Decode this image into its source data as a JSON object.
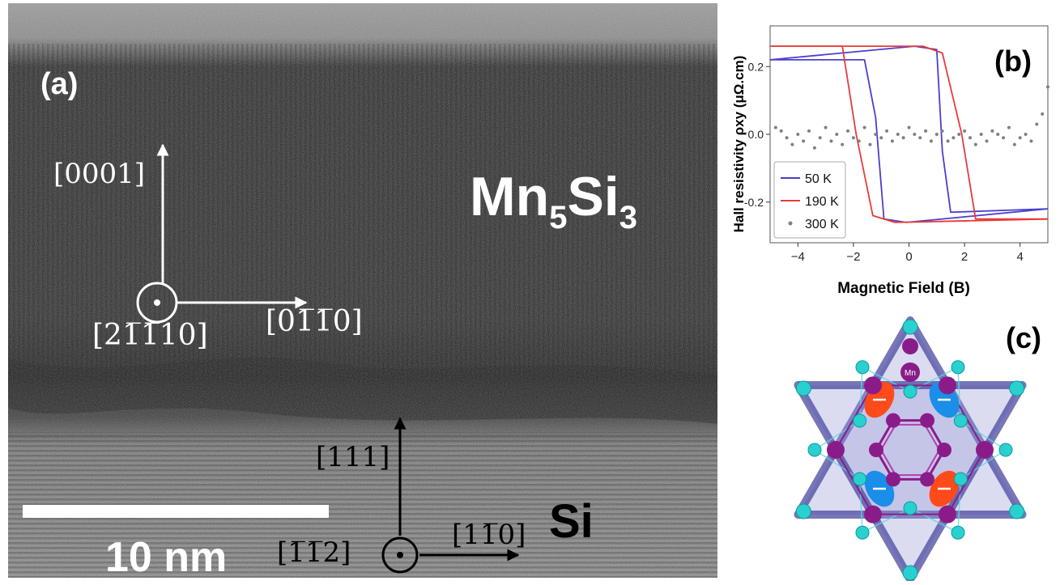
{
  "panel_a": {
    "label": "(a)",
    "material_top_main": "Mn",
    "material_top_sub1": "5",
    "material_top_mid": "Si",
    "material_top_sub2": "3",
    "material_bottom": "Si",
    "scale_bar_label": "10 nm",
    "mn5si3_axes": {
      "up": "[0001]",
      "right": "[01̅1̅0]",
      "out": "[21̅1̅10]"
    },
    "si_axes": {
      "up": "[111]",
      "right": "[11̅0]",
      "out": "[1̅1̅2]"
    }
  },
  "panel_b": {
    "label": "(b)",
    "colors": {
      "50K": "#4b3fcf",
      "190K": "#e83a3a",
      "300K": "#808080"
    }
  },
  "panel_c": {
    "label": "(c)",
    "atom_label": "Mn",
    "colors": {
      "mn": "#8a1c8a",
      "si": "#2ad0d0",
      "bond": "#4a4aa0",
      "spin_red": "#ff4a1a",
      "spin_blue": "#1a8ee8"
    }
  },
  "chart_data": {
    "type": "line",
    "xlabel": "Magnetic Field (B)",
    "ylabel": "Hall resistivity ρxy (μΩ.cm)",
    "xlim": [
      -5,
      5
    ],
    "ylim": [
      -0.32,
      0.32
    ],
    "xticks": [
      -4,
      -2,
      0,
      2,
      4
    ],
    "yticks": [
      0.2,
      0.0,
      -0.2
    ],
    "grid": false,
    "legend_position": "bottom-left",
    "series": [
      {
        "name": "50 K",
        "style": "line",
        "x_down": [
          5,
          1.5,
          1.2,
          1.0,
          0.2,
          -5
        ],
        "y_down": [
          -0.22,
          -0.23,
          -0.05,
          0.25,
          0.26,
          0.22
        ],
        "x_up": [
          -5,
          -1.6,
          -1.2,
          -0.9,
          -0.1,
          5
        ],
        "y_up": [
          0.22,
          0.22,
          0.05,
          -0.25,
          -0.26,
          -0.22
        ]
      },
      {
        "name": "190 K",
        "style": "line",
        "x_down": [
          5,
          2.4,
          1.9,
          1.2,
          0.5,
          -5
        ],
        "y_down": [
          -0.25,
          -0.25,
          0.0,
          0.24,
          0.26,
          0.26
        ],
        "x_up": [
          -5,
          -2.4,
          -1.9,
          -1.3,
          -0.5,
          5
        ],
        "y_up": [
          0.26,
          0.26,
          0.0,
          -0.24,
          -0.26,
          -0.25
        ]
      },
      {
        "name": "300 K",
        "style": "dots",
        "x": [
          -4.8,
          -4.6,
          -4.4,
          -4.2,
          -4.0,
          -3.8,
          -3.6,
          -3.4,
          -3.2,
          -3.0,
          -2.8,
          -2.6,
          -2.4,
          -2.2,
          -2.0,
          -1.8,
          -1.6,
          -1.4,
          -1.2,
          -1.0,
          -0.8,
          -0.6,
          -0.4,
          -0.2,
          0.0,
          0.2,
          0.4,
          0.6,
          0.8,
          1.0,
          1.2,
          1.4,
          1.6,
          1.8,
          2.0,
          2.2,
          2.4,
          2.6,
          2.8,
          3.0,
          3.2,
          3.4,
          3.6,
          3.8,
          4.0,
          4.2,
          4.4,
          4.6,
          4.8,
          5.0
        ],
        "y": [
          0.02,
          0.01,
          -0.01,
          -0.03,
          0.0,
          -0.02,
          0.01,
          -0.04,
          -0.01,
          0.02,
          -0.02,
          0.0,
          -0.03,
          0.01,
          -0.01,
          -0.02,
          0.02,
          -0.03,
          0.0,
          -0.01,
          0.01,
          -0.02,
          0.0,
          -0.01,
          0.02,
          0.0,
          -0.01,
          0.01,
          -0.02,
          0.0,
          0.01,
          -0.02,
          -0.01,
          0.0,
          0.01,
          -0.01,
          -0.03,
          0.0,
          -0.02,
          0.01,
          0.0,
          -0.01,
          0.02,
          -0.03,
          -0.01,
          0.0,
          -0.02,
          0.03,
          0.06,
          0.14
        ]
      }
    ]
  }
}
